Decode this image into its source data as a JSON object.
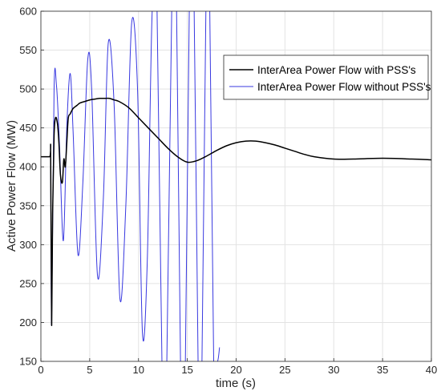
{
  "chart_data": {
    "type": "line",
    "xlabel": "time (s)",
    "ylabel": "Active Power Flow (MW)",
    "xlim": [
      0,
      40
    ],
    "ylim": [
      150,
      600
    ],
    "xticks": [
      0,
      5,
      10,
      15,
      20,
      25,
      30,
      35,
      40
    ],
    "yticks": [
      150,
      200,
      250,
      300,
      350,
      400,
      450,
      500,
      550,
      600
    ],
    "grid": true,
    "legend_position": "top-right",
    "series": [
      {
        "name": "InterArea Power Flow with PSS's",
        "color": "#000000",
        "x": [
          0,
          0.9,
          1.0,
          1.1,
          1.2,
          1.35,
          1.5,
          1.7,
          1.85,
          2.0,
          2.2,
          2.35,
          2.5,
          2.65,
          2.8,
          3.0,
          3.3,
          3.7,
          4.0,
          4.5,
          5.0,
          5.5,
          6.0,
          6.5,
          7.0,
          7.5,
          8.0,
          9.0,
          10.0,
          11.0,
          12.0,
          13.0,
          14.0,
          15.0,
          16.0,
          17.0,
          18.0,
          19.0,
          20.0,
          21.0,
          22.0,
          23.0,
          24.0,
          25.0,
          26.0,
          27.0,
          28.0,
          30.0,
          32.0,
          35.0,
          38.0,
          40.0
        ],
        "values": [
          413,
          413,
          413,
          197,
          340,
          440,
          463,
          455,
          430,
          390,
          380,
          410,
          400,
          430,
          462,
          468,
          475,
          479,
          482,
          484,
          486,
          487,
          488,
          488,
          488,
          486,
          484,
          476,
          463,
          450,
          437,
          424,
          413,
          406,
          408,
          414,
          421,
          427,
          431,
          433,
          433,
          431,
          428,
          424,
          420,
          416,
          413,
          410,
          410,
          411,
          410,
          409
        ]
      },
      {
        "name": "InterArea Power Flow without PSS's",
        "color": "#3838e0",
        "x": [
          0,
          0.9,
          1.0,
          1.1,
          1.35,
          1.6,
          1.9,
          2.3,
          2.65,
          3.0,
          3.3,
          3.8,
          4.3,
          4.8,
          5.2,
          5.8,
          6.4,
          6.9,
          7.5,
          8.1,
          8.7,
          9.3,
          9.9,
          10.4,
          10.9,
          11.4,
          11.9,
          12.4,
          12.9,
          13.4,
          13.9,
          14.3,
          14.8,
          15.2,
          15.7,
          16.1,
          16.5,
          16.9,
          17.3,
          17.7,
          18.1,
          18.3
        ],
        "values": [
          413,
          413,
          413,
          197,
          500,
          504,
          430,
          305,
          450,
          520,
          445,
          287,
          380,
          538,
          500,
          260,
          360,
          559,
          480,
          230,
          350,
          585,
          500,
          187,
          280,
          600,
          600,
          150,
          150,
          600,
          600,
          150,
          150,
          600,
          600,
          150,
          150,
          600,
          600,
          150,
          150,
          168
        ]
      }
    ]
  }
}
